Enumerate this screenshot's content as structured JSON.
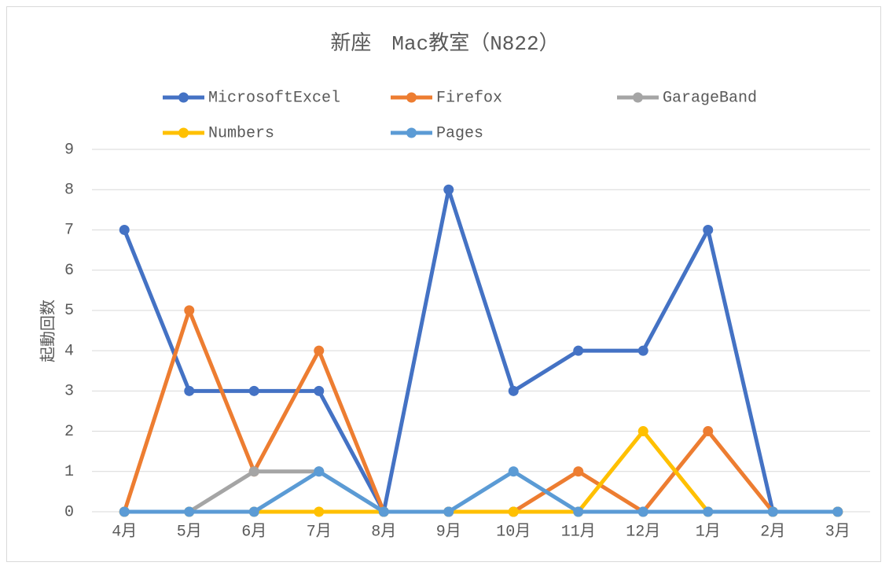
{
  "chart_data": {
    "type": "line",
    "title": "新座　Mac教室（N822）",
    "y_label": "起動回数",
    "categories": [
      "4月",
      "5月",
      "6月",
      "7月",
      "8月",
      "9月",
      "10月",
      "11月",
      "12月",
      "1月",
      "2月",
      "3月"
    ],
    "series": [
      {
        "name": "MicrosoftExcel",
        "color": "#4472c4",
        "values": [
          7,
          3,
          3,
          3,
          0,
          8,
          3,
          4,
          4,
          7,
          0,
          0
        ]
      },
      {
        "name": "Firefox",
        "color": "#ed7d31",
        "values": [
          0,
          5,
          1,
          4,
          0,
          0,
          0,
          1,
          0,
          2,
          0,
          0
        ]
      },
      {
        "name": "GarageBand",
        "color": "#a5a5a5",
        "values": [
          0,
          0,
          1,
          1,
          0,
          0,
          0,
          0,
          0,
          0,
          0,
          0
        ]
      },
      {
        "name": "Numbers",
        "color": "#ffc000",
        "values": [
          0,
          0,
          0,
          0,
          0,
          0,
          0,
          0,
          2,
          0,
          0,
          0
        ]
      },
      {
        "name": "Pages",
        "color": "#5b9bd5",
        "values": [
          0,
          0,
          0,
          1,
          0,
          0,
          1,
          0,
          0,
          0,
          0,
          0
        ]
      }
    ],
    "ylim": [
      0,
      9
    ],
    "yticks": [
      0,
      1,
      2,
      3,
      4,
      5,
      6,
      7,
      8,
      9
    ],
    "grid": true,
    "legend": "top"
  }
}
